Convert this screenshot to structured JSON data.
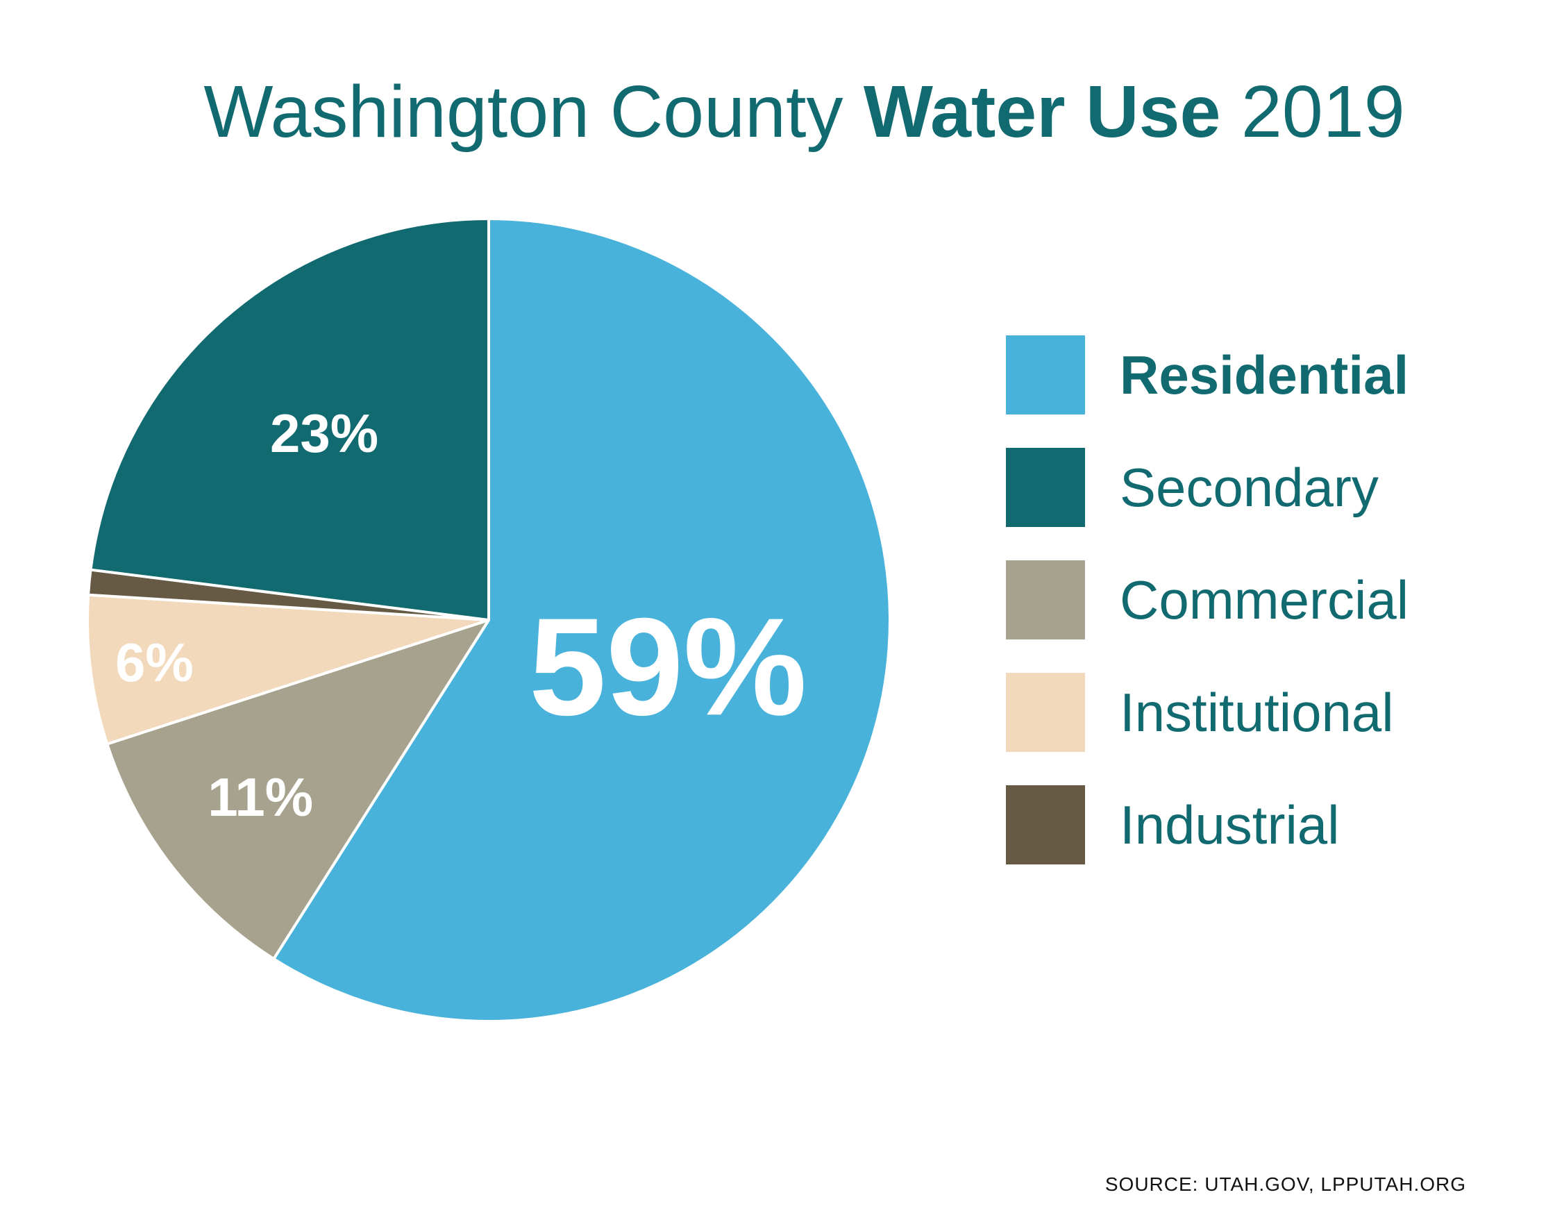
{
  "title": {
    "part1": "Washington County",
    "part2": "Water Use",
    "part3": "2019"
  },
  "chart_data": {
    "type": "pie",
    "title": "Washington County Water Use 2019",
    "unit": "%",
    "slices": [
      {
        "name": "Residential",
        "value": 59,
        "label": "59%",
        "color": "#48b2da"
      },
      {
        "name": "Commercial",
        "value": 11,
        "label": "11%",
        "color": "#a7a28d"
      },
      {
        "name": "Institutional",
        "value": 6,
        "label": "6%",
        "color": "#f2d9bc"
      },
      {
        "name": "Industrial",
        "value": 1,
        "label": "",
        "color": "#665a44"
      },
      {
        "name": "Secondary",
        "value": 23,
        "label": "23%",
        "color": "#106a70"
      }
    ],
    "legend": [
      {
        "label": "Residential",
        "color": "#48b2da",
        "bold": true
      },
      {
        "label": "Secondary",
        "color": "#106a70",
        "bold": false
      },
      {
        "label": "Commercial",
        "color": "#a7a28d",
        "bold": false
      },
      {
        "label": "Institutional",
        "color": "#f2d9bc",
        "bold": false
      },
      {
        "label": "Industrial",
        "color": "#665a44",
        "bold": false
      }
    ],
    "legend_position": "right"
  },
  "source": "SOURCE: UTAH.GOV, LPPUTAH.ORG"
}
